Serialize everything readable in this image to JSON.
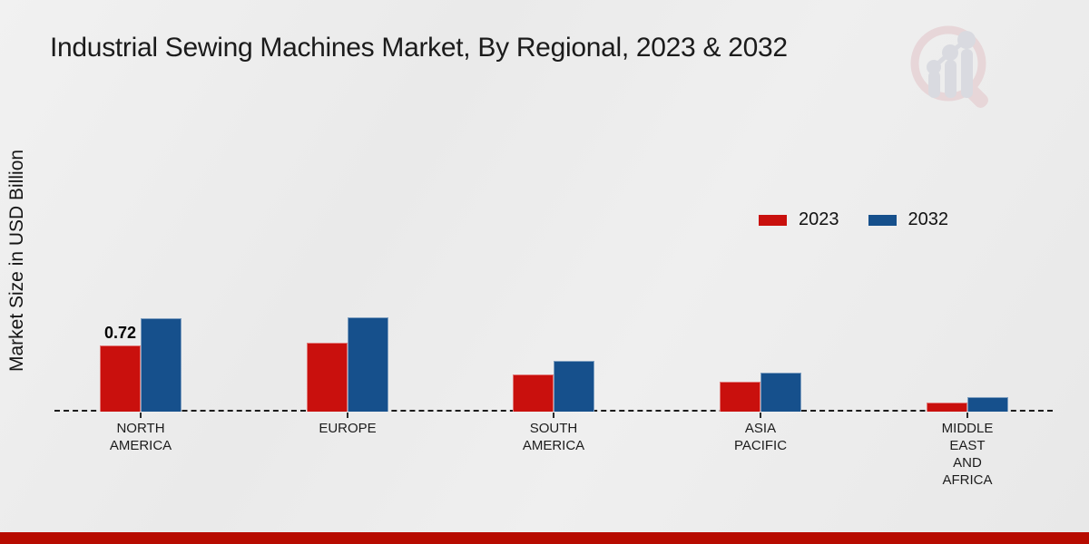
{
  "title": "Industrial Sewing Machines Market, By Regional, 2023 & 2032",
  "y_axis_label": "Market Size in USD Billion",
  "legend": {
    "items": [
      {
        "label": "2023",
        "color": "#c9100d"
      },
      {
        "label": "2032",
        "color": "#16508c"
      }
    ]
  },
  "colors": {
    "series_2023": "#c9100d",
    "series_2032": "#16508c",
    "footer_band": "#b70b00",
    "axis_line": "#1c1c1c",
    "background": "#ededed",
    "logo_pink": "#e3c4c8",
    "logo_gray": "#c9ccd6"
  },
  "logo_name": "magnifier-bar-chart-logo",
  "chart_data": {
    "type": "bar",
    "title": "Industrial Sewing Machines Market, By Regional, 2023 & 2032",
    "xlabel": "",
    "ylabel": "Market Size in USD Billion",
    "unit": "USD Billion",
    "categories": [
      "NORTH AMERICA",
      "EUROPE",
      "SOUTH AMERICA",
      "ASIA PACIFIC",
      "MIDDLE EAST AND AFRICA"
    ],
    "category_label_lines": [
      [
        "NORTH",
        "AMERICA"
      ],
      [
        "EUROPE"
      ],
      [
        "SOUTH",
        "AMERICA"
      ],
      [
        "ASIA",
        "PACIFIC"
      ],
      [
        "MIDDLE",
        "EAST",
        "AND",
        "AFRICA"
      ]
    ],
    "series": [
      {
        "name": "2023",
        "color": "#c9100d",
        "values": [
          0.72,
          0.75,
          0.4,
          0.33,
          0.1
        ],
        "value_labels": [
          "0.72",
          "",
          "",
          "",
          ""
        ]
      },
      {
        "name": "2032",
        "color": "#16508c",
        "values": [
          1.02,
          1.03,
          0.55,
          0.42,
          0.16
        ],
        "value_labels": [
          "",
          "",
          "",
          "",
          ""
        ]
      }
    ],
    "ylim": [
      0,
      1.1
    ],
    "grid": false,
    "legend_position": "upper-right",
    "x_axis_style": "dashed-baseline",
    "annotations": [
      "0.72 labeled above North America 2023 bar"
    ]
  }
}
